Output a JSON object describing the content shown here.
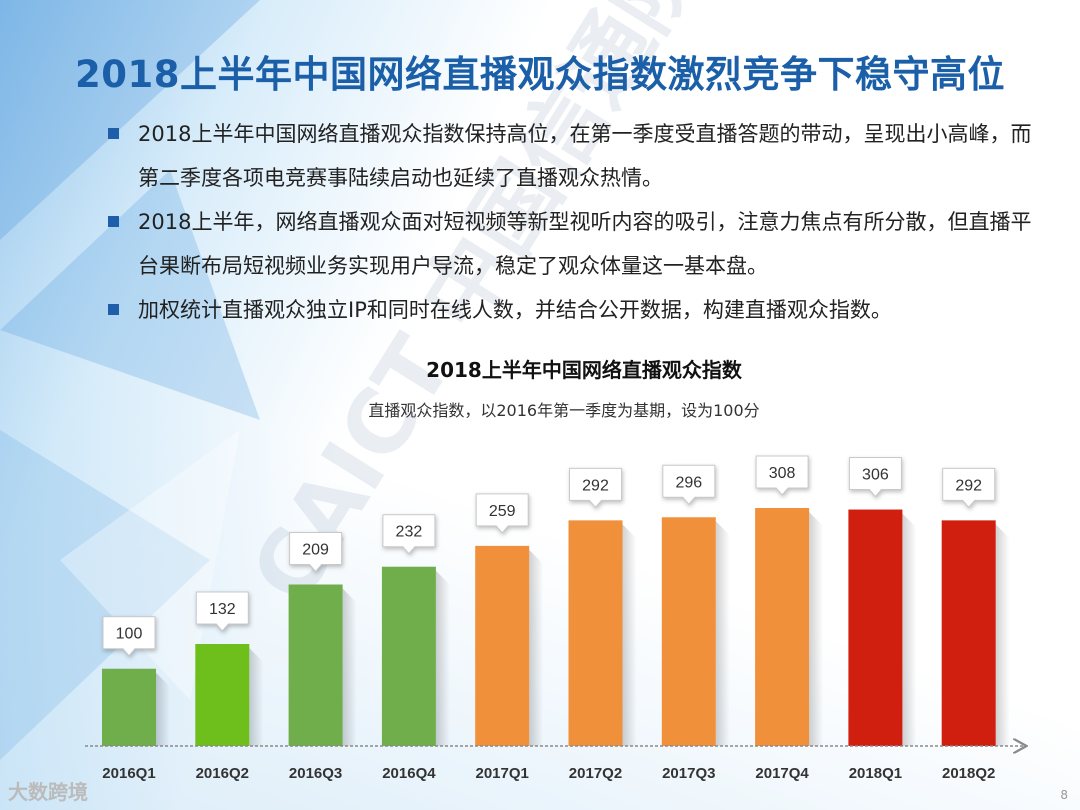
{
  "title": "2018上半年中国网络直播观众指数激烈竞争下稳守高位",
  "bullets": [
    "2018上半年中国网络直播观众指数保持高位，在第一季度受直播答题的带动，呈现出小高峰，而第二季度各项电竞赛事陆续启动也延续了直播观众热情。",
    "2018上半年，网络直播观众面对短视频等新型视听内容的吸引，注意力焦点有所分散，但直播平台果断布局短视频业务实现用户导流，稳定了观众体量这一基本盘。",
    "加权统计直播观众独立IP和同时在线人数，并结合公开数据，构建直播观众指数。"
  ],
  "chart_data": {
    "type": "bar",
    "title": "2018上半年中国网络直播观众指数",
    "subtitle": "直播观众指数，以2016年第一季度为基期，设为100分",
    "categories": [
      "2016Q1",
      "2016Q2",
      "2016Q3",
      "2016Q4",
      "2017Q1",
      "2017Q2",
      "2017Q3",
      "2017Q4",
      "2018Q1",
      "2018Q2"
    ],
    "values": [
      100,
      132,
      209,
      232,
      259,
      292,
      296,
      308,
      306,
      292
    ],
    "colors": [
      "#6fae4b",
      "#6fbf1c",
      "#6fae4b",
      "#6fae4b",
      "#f0903a",
      "#f0903a",
      "#f0903a",
      "#f0903a",
      "#d01f0f",
      "#d01f0f"
    ],
    "ylim": [
      0,
      340
    ],
    "grid": false,
    "legend": "none"
  },
  "watermark": "CAICT 中国信通院",
  "logo_text": "大数跨境",
  "page_number": "8"
}
